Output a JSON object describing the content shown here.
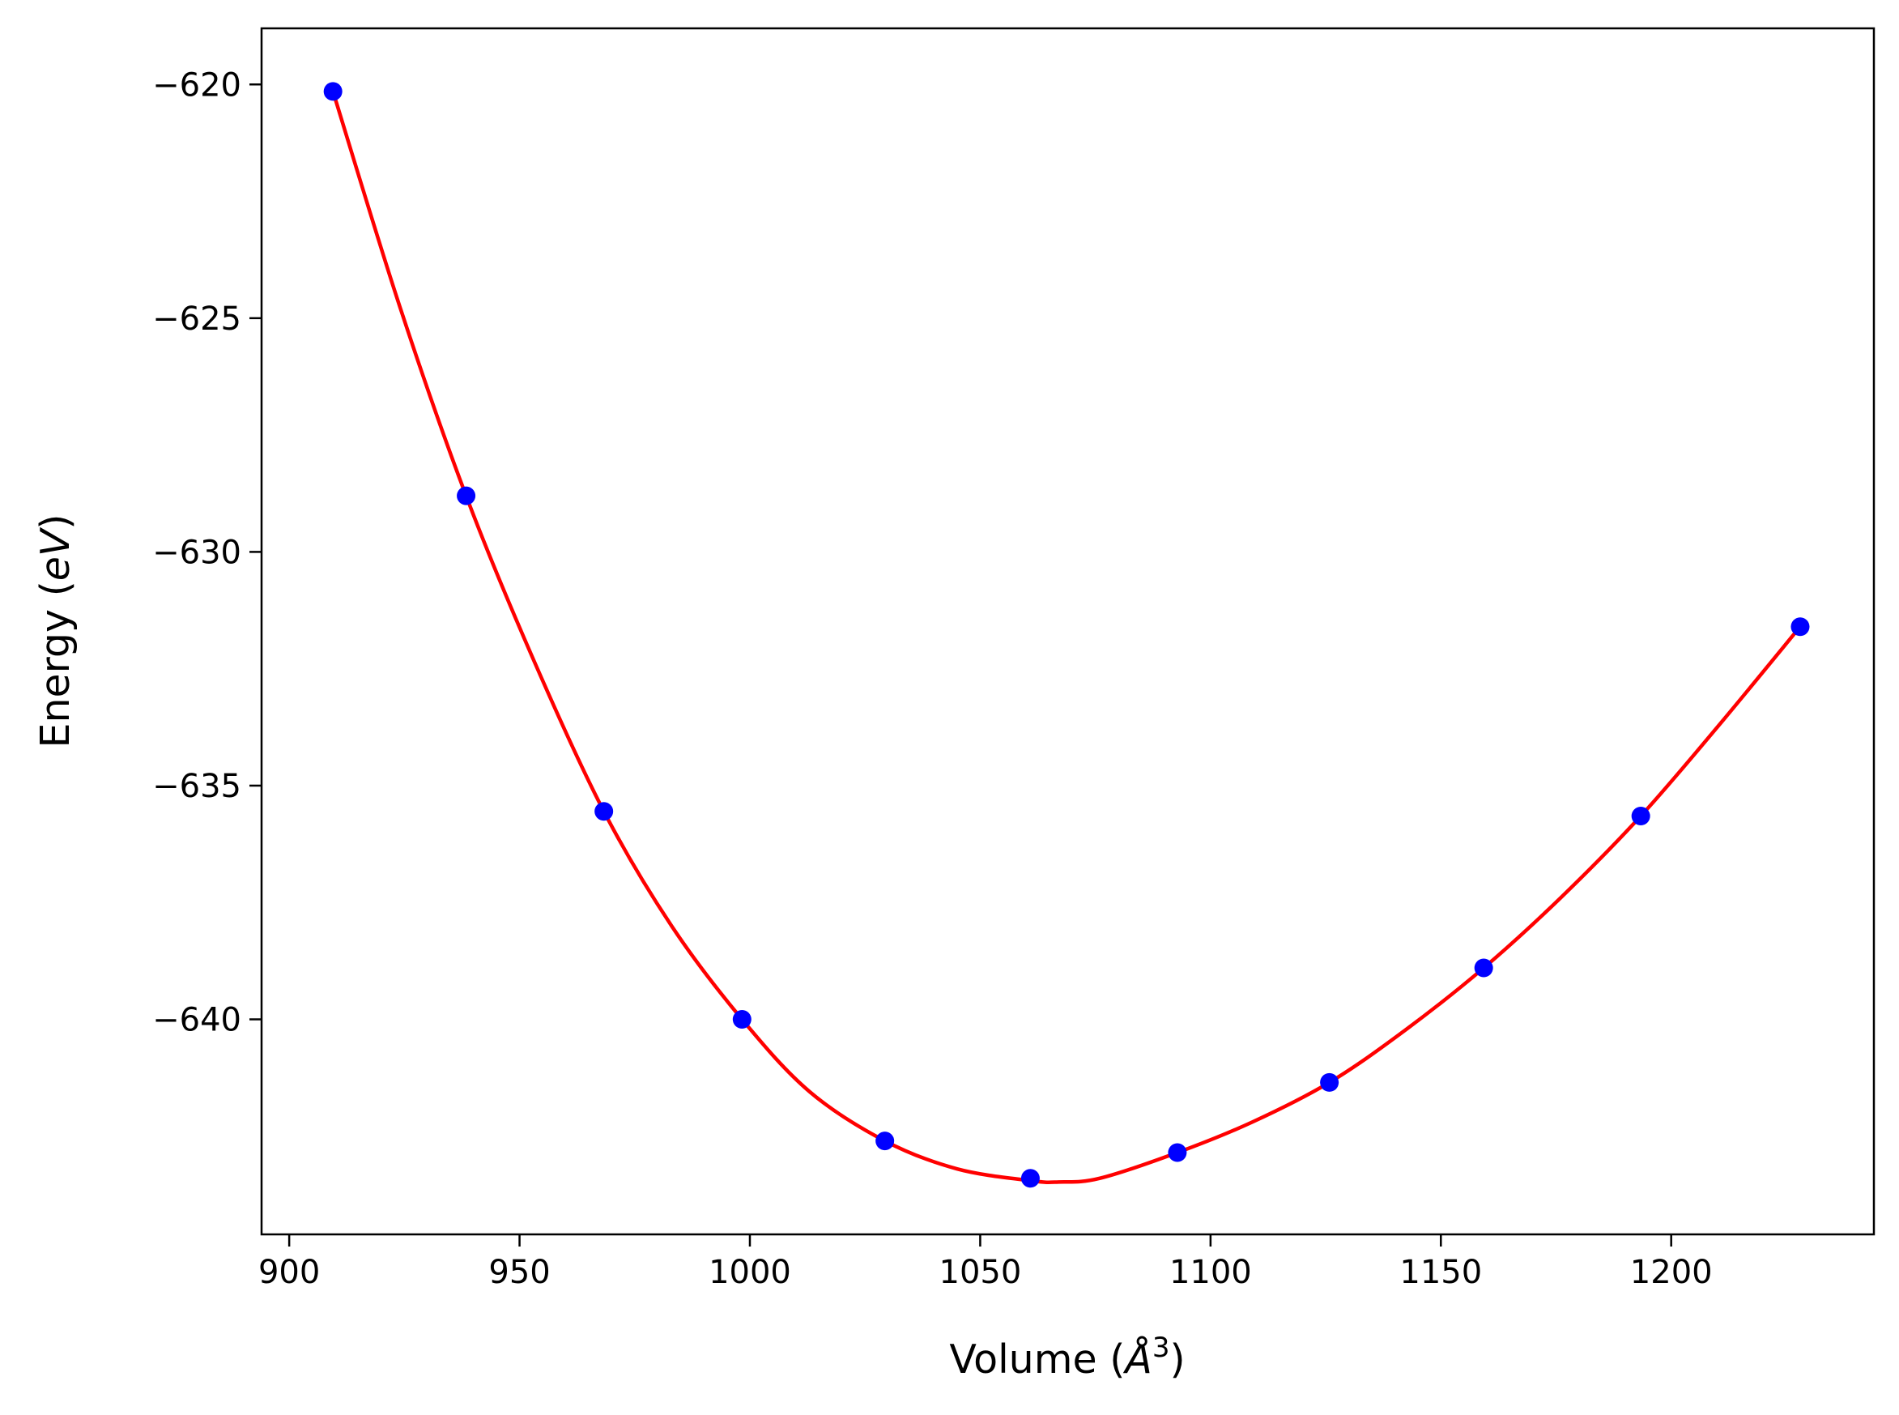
{
  "chart_data": {
    "type": "scatter",
    "title": "",
    "xlabel": {
      "prefix": "Volume (",
      "symbol": "Å",
      "sup": "3",
      "suffix": ")"
    },
    "ylabel": {
      "prefix": "Energy (",
      "italic": "eV",
      "suffix": ")"
    },
    "xlim": [
      894,
      1244
    ],
    "ylim": [
      -644.6,
      -618.8
    ],
    "xticks": [
      900,
      950,
      1000,
      1050,
      1100,
      1150,
      1200
    ],
    "xtick_labels": [
      "900",
      "950",
      "1000",
      "1050",
      "1100",
      "1150",
      "1200"
    ],
    "yticks": [
      -620,
      -625,
      -630,
      -635,
      -640
    ],
    "ytick_labels": [
      "−620",
      "−625",
      "−630",
      "−635",
      "−640"
    ],
    "grid": false,
    "series": [
      {
        "kind": "points",
        "color": "#0000ff",
        "x": [
          909.5,
          938.4,
          968.3,
          998.3,
          1029.3,
          1060.9,
          1092.8,
          1125.8,
          1159.3,
          1193.4,
          1228.0
        ],
        "y": [
          -620.15,
          -628.8,
          -635.55,
          -640.0,
          -642.6,
          -643.4,
          -642.85,
          -641.35,
          -638.9,
          -635.65,
          -631.6
        ]
      },
      {
        "kind": "fit-curve",
        "color": "#ff0000",
        "x": [
          909.5,
          924,
          938.4,
          953,
          968.3,
          983,
          998.3,
          1013,
          1029.3,
          1045,
          1060.9,
          1067,
          1076,
          1092.8,
          1109,
          1125.8,
          1142,
          1159.3,
          1176,
          1193.4,
          1210,
          1228.0
        ],
        "y": [
          -620.15,
          -624.75,
          -628.8,
          -632.3,
          -635.55,
          -638.0,
          -640.0,
          -641.55,
          -642.6,
          -643.2,
          -643.45,
          -643.48,
          -643.4,
          -642.85,
          -642.2,
          -641.35,
          -640.25,
          -638.9,
          -637.4,
          -635.65,
          -633.75,
          -631.6
        ]
      }
    ]
  }
}
